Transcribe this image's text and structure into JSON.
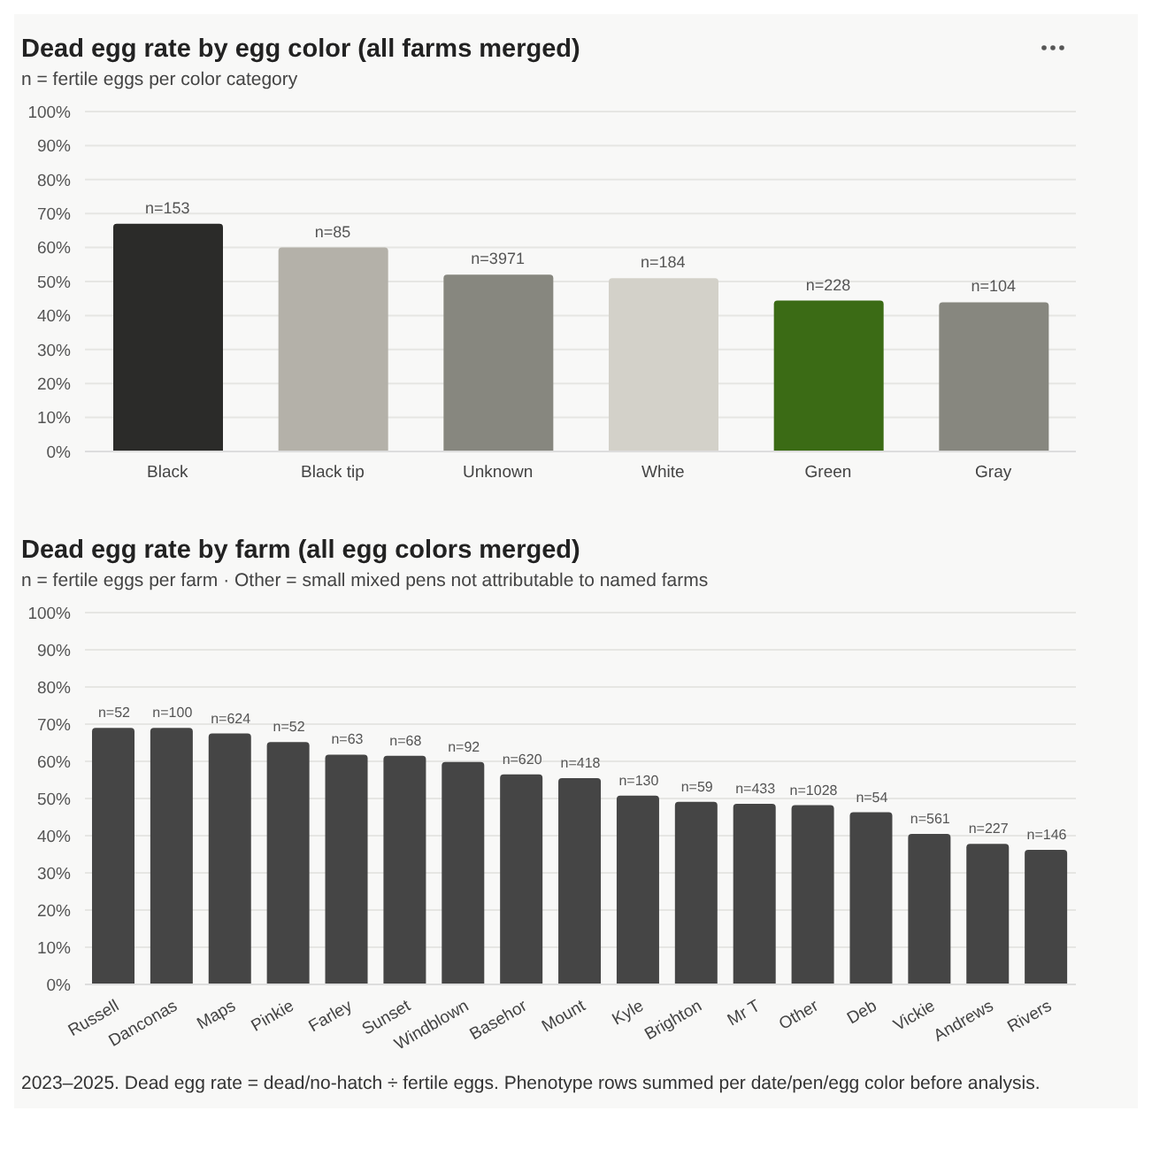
{
  "chart_data": [
    {
      "type": "bar",
      "title": "Dead egg rate by egg color (all farms merged)",
      "subtitle": "n = fertile eggs per color category",
      "categories": [
        "Black",
        "Black tip",
        "Unknown",
        "White",
        "Green",
        "Gray"
      ],
      "values": [
        67,
        60,
        52,
        51,
        44.4,
        43.9
      ],
      "colors": [
        "#2b2b29",
        "#b4b1a9",
        "#87877f",
        "#d3d1c9",
        "#3b6b15",
        "#87877f"
      ],
      "ylim": [
        0,
        100
      ],
      "yticks": [
        {
          "value": 0,
          "label": "0%"
        },
        {
          "value": 10,
          "label": "10%"
        },
        {
          "value": 20,
          "label": "20%"
        },
        {
          "value": 30,
          "label": "30%"
        },
        {
          "value": 40,
          "label": "40%"
        },
        {
          "value": 50,
          "label": "50%"
        },
        {
          "value": 60,
          "label": "60%"
        },
        {
          "value": 70,
          "label": "70%"
        },
        {
          "value": 80,
          "label": "80%"
        },
        {
          "value": 90,
          "label": "90%"
        },
        {
          "value": 100,
          "label": "100%"
        }
      ],
      "grid": "y",
      "legend": false,
      "annotations": [
        {
          "text": "n=153",
          "x": "Black",
          "y": 67
        },
        {
          "text": "n=85",
          "x": "Black tip",
          "y": 60
        },
        {
          "text": "n=3971",
          "x": "Unknown",
          "y": 52
        },
        {
          "text": "n=184",
          "x": "White",
          "y": 51
        },
        {
          "text": "n=228",
          "x": "Green",
          "y": 44.4
        },
        {
          "text": "n=104",
          "x": "Gray",
          "y": 43.9
        }
      ]
    },
    {
      "type": "bar",
      "title": "Dead egg rate by farm (all egg colors merged)",
      "subtitle": "n = fertile eggs per farm · Other = small mixed pens not attributable to named farms",
      "categories": [
        "Russell",
        "Danconas",
        "Maps",
        "Pinkie",
        "Farley",
        "Sunset",
        "Windblown",
        "Basehor",
        "Mount",
        "Kyle",
        "Brighton",
        "Mr T",
        "Other",
        "Deb",
        "Vickie",
        "Andrews",
        "Rivers"
      ],
      "values": [
        69,
        69,
        67.5,
        65.2,
        61.8,
        61.5,
        59.8,
        56.5,
        55.5,
        50.8,
        49.1,
        48.6,
        48.2,
        46.3,
        40.5,
        37.8,
        36.2
      ],
      "color": "#454545",
      "ylim": [
        0,
        100
      ],
      "yticks": [
        {
          "value": 0,
          "label": "0%"
        },
        {
          "value": 10,
          "label": "10%"
        },
        {
          "value": 20,
          "label": "20%"
        },
        {
          "value": 30,
          "label": "30%"
        },
        {
          "value": 40,
          "label": "40%"
        },
        {
          "value": 50,
          "label": "50%"
        },
        {
          "value": 60,
          "label": "60%"
        },
        {
          "value": 70,
          "label": "70%"
        },
        {
          "value": 80,
          "label": "80%"
        },
        {
          "value": 90,
          "label": "90%"
        },
        {
          "value": 100,
          "label": "100%"
        }
      ],
      "grid": "y",
      "legend": false,
      "annotations": [
        {
          "text": "n=52",
          "x": "Russell",
          "y": 69
        },
        {
          "text": "n=100",
          "x": "Danconas",
          "y": 69
        },
        {
          "text": "n=624",
          "x": "Maps",
          "y": 67.5
        },
        {
          "text": "n=52",
          "x": "Pinkie",
          "y": 65.2
        },
        {
          "text": "n=63",
          "x": "Farley",
          "y": 61.8
        },
        {
          "text": "n=68",
          "x": "Sunset",
          "y": 61.5
        },
        {
          "text": "n=92",
          "x": "Windblown",
          "y": 59.8
        },
        {
          "text": "n=620",
          "x": "Basehor",
          "y": 56.5
        },
        {
          "text": "n=418",
          "x": "Mount",
          "y": 55.5
        },
        {
          "text": "n=130",
          "x": "Kyle",
          "y": 50.8
        },
        {
          "text": "n=59",
          "x": "Brighton",
          "y": 49.1
        },
        {
          "text": "n=433",
          "x": "Mr T",
          "y": 48.6
        },
        {
          "text": "n=1028",
          "x": "Other",
          "y": 48.2
        },
        {
          "text": "n=54",
          "x": "Deb",
          "y": 46.3
        },
        {
          "text": "n=561",
          "x": "Vickie",
          "y": 40.5
        },
        {
          "text": "n=227",
          "x": "Andrews",
          "y": 37.8
        },
        {
          "text": "n=146",
          "x": "Rivers",
          "y": 36.2
        },
        "2023–2025. Dead egg rate = dead/no-hatch ÷ fertile eggs. Phenotype rows summed per date/pen/egg color before analysis."
      ]
    }
  ]
}
